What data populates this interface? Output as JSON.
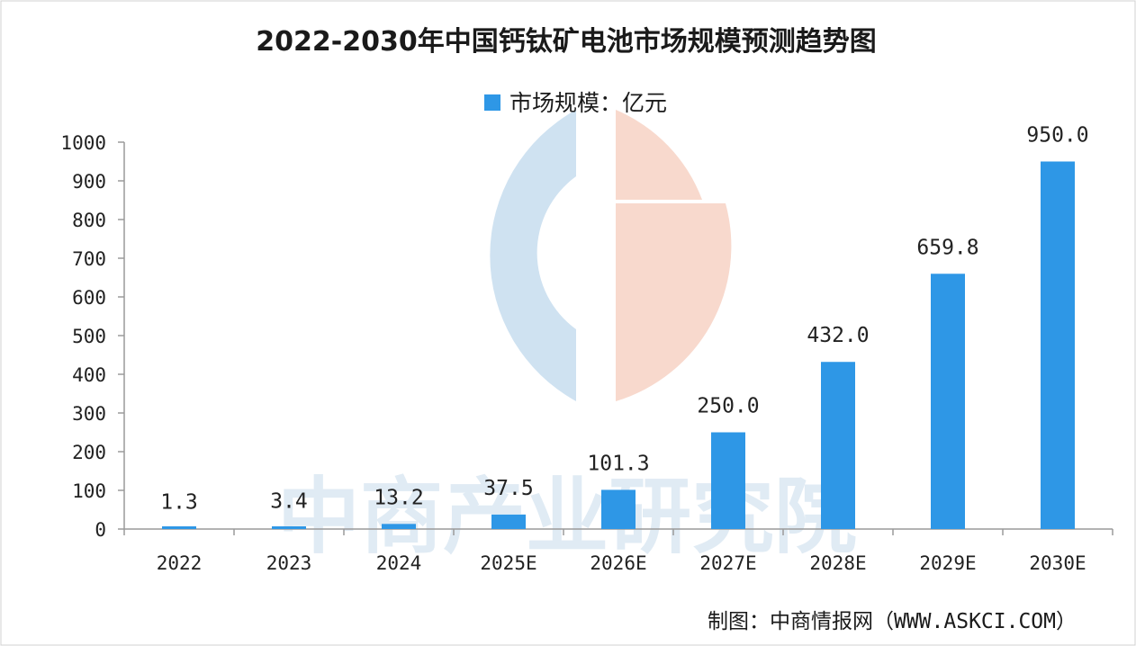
{
  "chart_data": {
    "type": "bar",
    "title": "2022-2030年中国钙钛矿电池市场规模预测趋势图",
    "legend": "市场规模：亿元",
    "categories": [
      "2022",
      "2023",
      "2024",
      "2025E",
      "2026E",
      "2027E",
      "2028E",
      "2029E",
      "2030E"
    ],
    "values": [
      1.3,
      3.4,
      13.2,
      37.5,
      101.3,
      250.0,
      432.0,
      659.8,
      950.0
    ],
    "value_labels": [
      "1.3",
      "3.4",
      "13.2",
      "37.5",
      "101.3",
      "250.0",
      "432.0",
      "659.8",
      "950.0"
    ],
    "y_ticks": [
      0,
      100,
      200,
      300,
      400,
      500,
      600,
      700,
      800,
      900,
      1000
    ],
    "ylim": [
      0,
      1000
    ],
    "xlabel": "",
    "ylabel": "",
    "legend_position": "top-center",
    "grid": false,
    "bar_color": "#2e97e6",
    "axis_color": "#9a9a9a"
  },
  "source": "制图：中商情报网（WWW.ASKCI.COM）",
  "watermark": {
    "text": "中商产业研究院",
    "logo_colors": [
      "#cfe2f1",
      "#f8d9cd"
    ]
  }
}
